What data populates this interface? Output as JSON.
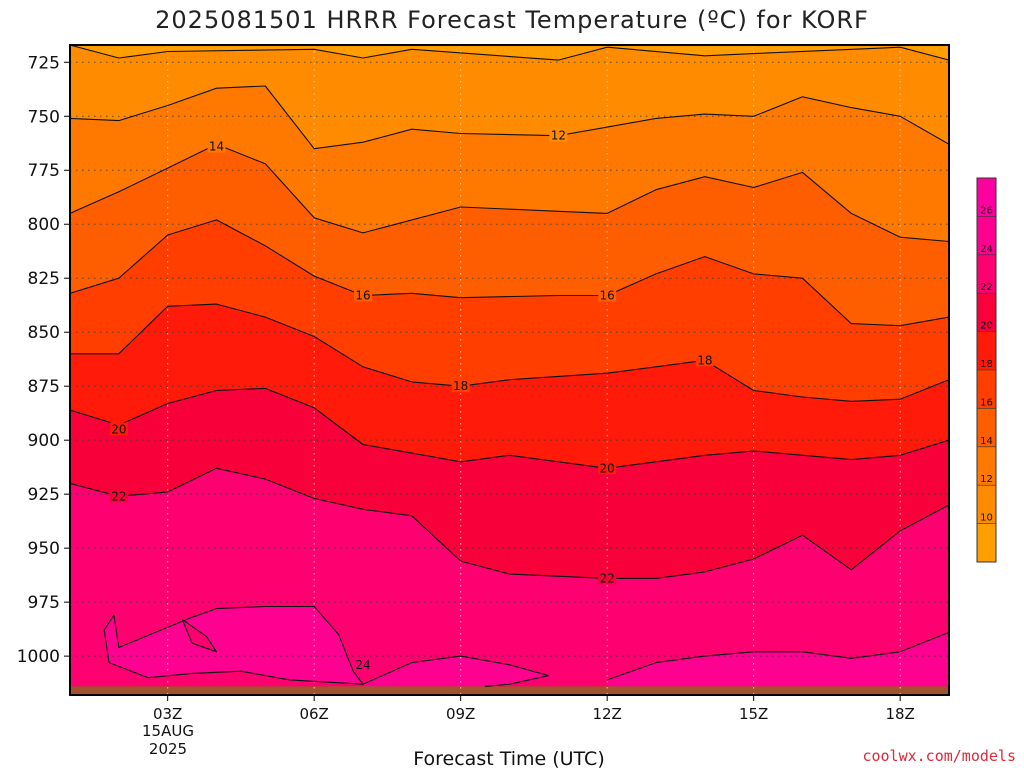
{
  "chart_data": {
    "type": "heatmap",
    "title": "2025081501 HRRR Forecast Temperature (ºC) for KORF",
    "xlabel": "Forecast Time (UTC)",
    "ylabel": "",
    "credit": "coolwx.com/models",
    "date_label": [
      "15AUG",
      "2025"
    ],
    "x_ticks": [
      {
        "hour": 3,
        "label": "03Z"
      },
      {
        "hour": 6,
        "label": "06Z"
      },
      {
        "hour": 9,
        "label": "09Z"
      },
      {
        "hour": 12,
        "label": "12Z"
      },
      {
        "hour": 15,
        "label": "15Z"
      },
      {
        "hour": 18,
        "label": "18Z"
      }
    ],
    "xlim": [
      1,
      19
    ],
    "y_ticks": [
      725,
      750,
      775,
      800,
      825,
      850,
      875,
      900,
      925,
      950,
      975,
      1000
    ],
    "ylim": [
      1018,
      717
    ],
    "ground_level_hpa": 1014,
    "grid": true,
    "colorbar": {
      "ticks": [
        10,
        12,
        14,
        16,
        18,
        20,
        22,
        24,
        26
      ],
      "range": [
        8,
        28
      ],
      "bands": [
        {
          "from": 8,
          "to": 10,
          "color": "#ff9e00"
        },
        {
          "from": 10,
          "to": 12,
          "color": "#ff8c00"
        },
        {
          "from": 12,
          "to": 14,
          "color": "#ff7800"
        },
        {
          "from": 14,
          "to": 16,
          "color": "#ff5e00"
        },
        {
          "from": 16,
          "to": 18,
          "color": "#ff3e00"
        },
        {
          "from": 18,
          "to": 20,
          "color": "#ff1a0a"
        },
        {
          "from": 20,
          "to": 22,
          "color": "#f8003a"
        },
        {
          "from": 22,
          "to": 24,
          "color": "#ff0070"
        },
        {
          "from": 24,
          "to": 26,
          "color": "#ff0090"
        },
        {
          "from": 26,
          "to": 28,
          "color": "#ff00a0"
        }
      ]
    },
    "ground_color": "#a0522d",
    "isotherms": [
      {
        "value": 10,
        "points": [
          [
            1,
            717
          ],
          [
            2,
            723
          ],
          [
            3,
            720
          ],
          [
            6,
            719
          ],
          [
            7,
            723
          ],
          [
            8,
            719
          ],
          [
            11,
            724
          ],
          [
            12,
            718
          ],
          [
            14,
            722
          ],
          [
            15,
            721
          ],
          [
            18,
            718
          ],
          [
            19,
            724
          ]
        ]
      },
      {
        "value": 12,
        "points": [
          [
            1,
            751
          ],
          [
            2,
            752
          ],
          [
            3,
            745
          ],
          [
            4,
            737
          ],
          [
            5,
            736
          ],
          [
            6,
            765
          ],
          [
            7,
            762
          ],
          [
            8,
            756
          ],
          [
            9,
            758
          ],
          [
            11,
            759
          ],
          [
            12,
            755
          ],
          [
            13,
            751
          ],
          [
            14,
            749
          ],
          [
            15,
            750
          ],
          [
            16,
            741
          ],
          [
            17,
            746
          ],
          [
            18,
            750
          ],
          [
            19,
            763
          ]
        ]
      },
      {
        "value": 14,
        "points": [
          [
            1,
            795
          ],
          [
            2,
            785
          ],
          [
            3,
            774
          ],
          [
            4,
            763
          ],
          [
            5,
            772
          ],
          [
            6,
            797
          ],
          [
            7,
            804
          ],
          [
            9,
            792
          ],
          [
            11,
            794
          ],
          [
            12,
            795
          ],
          [
            13,
            784
          ],
          [
            14,
            778
          ],
          [
            15,
            783
          ],
          [
            16,
            776
          ],
          [
            17,
            795
          ],
          [
            18,
            806
          ],
          [
            19,
            808
          ]
        ]
      },
      {
        "value": 16,
        "points": [
          [
            1,
            832
          ],
          [
            2,
            825
          ],
          [
            3,
            805
          ],
          [
            4,
            798
          ],
          [
            5,
            810
          ],
          [
            6,
            824
          ],
          [
            7,
            833
          ],
          [
            8,
            832
          ],
          [
            9,
            834
          ],
          [
            11,
            833
          ],
          [
            12,
            833
          ],
          [
            13,
            823
          ],
          [
            14,
            815
          ],
          [
            15,
            823
          ],
          [
            16,
            825
          ],
          [
            17,
            846
          ],
          [
            18,
            847
          ],
          [
            19,
            843
          ]
        ]
      },
      {
        "value": 18,
        "points": [
          [
            1,
            860
          ],
          [
            2,
            860
          ],
          [
            3,
            838
          ],
          [
            4,
            837
          ],
          [
            5,
            843
          ],
          [
            6,
            852
          ],
          [
            7,
            866
          ],
          [
            8,
            873
          ],
          [
            9,
            875
          ],
          [
            10,
            872
          ],
          [
            12,
            869
          ],
          [
            13,
            866
          ],
          [
            14,
            863
          ],
          [
            15,
            877
          ],
          [
            16,
            880
          ],
          [
            17,
            882
          ],
          [
            18,
            881
          ],
          [
            19,
            872
          ]
        ]
      },
      {
        "value": 20,
        "points": [
          [
            1,
            886
          ],
          [
            2,
            893
          ],
          [
            3,
            883
          ],
          [
            4,
            877
          ],
          [
            5,
            876
          ],
          [
            6,
            885
          ],
          [
            7,
            902
          ],
          [
            8,
            906
          ],
          [
            9,
            910
          ],
          [
            10,
            907
          ],
          [
            12,
            913
          ],
          [
            13,
            910
          ],
          [
            14,
            907
          ],
          [
            15,
            905
          ],
          [
            17,
            909
          ],
          [
            18,
            907
          ],
          [
            19,
            900
          ]
        ]
      },
      {
        "value": 22,
        "points": [
          [
            1,
            920
          ],
          [
            2,
            926
          ],
          [
            3,
            924
          ],
          [
            4,
            913
          ],
          [
            5,
            918
          ],
          [
            6,
            927
          ],
          [
            7,
            932
          ],
          [
            8,
            935
          ],
          [
            9,
            956
          ],
          [
            10,
            962
          ],
          [
            12,
            964
          ],
          [
            13,
            964
          ],
          [
            14,
            961
          ],
          [
            15,
            955
          ],
          [
            16,
            944
          ],
          [
            17,
            960
          ],
          [
            18,
            942
          ],
          [
            19,
            930
          ]
        ]
      },
      {
        "value": 24,
        "points": [
          [
            1.9,
            981
          ],
          [
            2,
            996
          ],
          [
            3.5,
            982
          ],
          [
            4,
            978
          ],
          [
            5,
            977
          ],
          [
            6,
            977
          ],
          [
            6.5,
            990
          ],
          [
            6.8,
            1007
          ],
          [
            7,
            1013
          ]
        ]
      },
      {
        "value": 24,
        "points": [
          [
            1.9,
            981
          ],
          [
            1.7,
            988
          ],
          [
            1.8,
            1003
          ],
          [
            2.6,
            1010
          ],
          [
            3.5,
            1008
          ],
          [
            4.5,
            1007
          ],
          [
            5.5,
            1011
          ],
          [
            7,
            1013
          ]
        ]
      },
      {
        "value": 24,
        "points": [
          [
            3.3,
            983
          ],
          [
            3.8,
            991
          ],
          [
            4,
            998
          ],
          [
            3.5,
            994
          ],
          [
            3.3,
            983
          ]
        ]
      },
      {
        "value": 24,
        "points": [
          [
            7,
            1013
          ],
          [
            8,
            1003
          ],
          [
            9,
            1000
          ],
          [
            10,
            1004
          ],
          [
            10.8,
            1009
          ],
          [
            10,
            1013
          ],
          [
            9.5,
            1014
          ]
        ]
      },
      {
        "value": 24,
        "points": [
          [
            12,
            1011
          ],
          [
            13,
            1003
          ],
          [
            14,
            1000
          ],
          [
            15,
            998
          ],
          [
            16,
            998
          ],
          [
            17,
            1001
          ],
          [
            18,
            998
          ],
          [
            19,
            989
          ]
        ]
      }
    ],
    "contour_labels": [
      {
        "hour": 4,
        "hpa": 764,
        "text": "14"
      },
      {
        "hour": 11,
        "hpa": 759,
        "text": "12"
      },
      {
        "hour": 7,
        "hpa": 833,
        "text": "16"
      },
      {
        "hour": 12,
        "hpa": 833,
        "text": "16"
      },
      {
        "hour": 9,
        "hpa": 875,
        "text": "18"
      },
      {
        "hour": 14,
        "hpa": 863,
        "text": "18"
      },
      {
        "hour": 2,
        "hpa": 895,
        "text": "20"
      },
      {
        "hour": 12,
        "hpa": 913,
        "text": "20"
      },
      {
        "hour": 2,
        "hpa": 926,
        "text": "22"
      },
      {
        "hour": 12,
        "hpa": 964,
        "text": "22"
      },
      {
        "hour": 7,
        "hpa": 1004,
        "text": "24"
      }
    ]
  }
}
